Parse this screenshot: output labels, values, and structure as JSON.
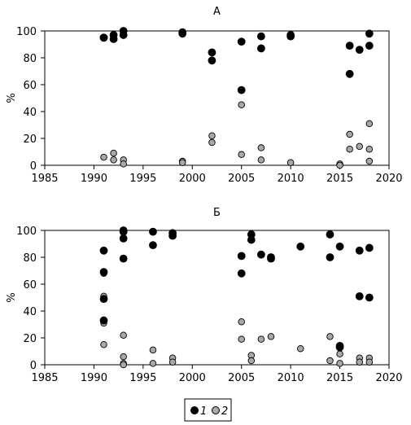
{
  "chart_data": [
    {
      "type": "scatter",
      "title": "А",
      "ylabel": "%",
      "xlabel": "",
      "xlim": [
        1985,
        2020
      ],
      "ylim": [
        0,
        100
      ],
      "xticks": [
        1985,
        1990,
        1995,
        2000,
        2005,
        2010,
        2015,
        2020
      ],
      "yticks": [
        0,
        20,
        40,
        60,
        80,
        100
      ],
      "grid": false,
      "series": [
        {
          "name": "1",
          "color": "#000000",
          "points": [
            [
              1991,
              95
            ],
            [
              1991,
              95
            ],
            [
              1992,
              97
            ],
            [
              1992,
              94
            ],
            [
              1993,
              100
            ],
            [
              1993,
              97
            ],
            [
              1999,
              99
            ],
            [
              1999,
              98
            ],
            [
              2002,
              84
            ],
            [
              2002,
              78
            ],
            [
              2005,
              92
            ],
            [
              2005,
              56
            ],
            [
              2007,
              96
            ],
            [
              2007,
              87
            ],
            [
              2010,
              97
            ],
            [
              2010,
              96
            ],
            [
              2016,
              89
            ],
            [
              2016,
              68
            ],
            [
              2017,
              86
            ],
            [
              2018,
              98
            ],
            [
              2018,
              89
            ]
          ]
        },
        {
          "name": "2",
          "color": "#a8a8a8",
          "points": [
            [
              1991,
              6
            ],
            [
              1992,
              9
            ],
            [
              1992,
              4
            ],
            [
              1993,
              4
            ],
            [
              1993,
              1
            ],
            [
              1999,
              3
            ],
            [
              1999,
              2
            ],
            [
              2002,
              22
            ],
            [
              2002,
              17
            ],
            [
              2005,
              45
            ],
            [
              2005,
              8
            ],
            [
              2007,
              13
            ],
            [
              2007,
              4
            ],
            [
              2010,
              2
            ],
            [
              2015,
              1
            ],
            [
              2015,
              0
            ],
            [
              2016,
              23
            ],
            [
              2016,
              12
            ],
            [
              2017,
              14
            ],
            [
              2018,
              31
            ],
            [
              2018,
              12
            ],
            [
              2018,
              3
            ]
          ]
        }
      ]
    },
    {
      "type": "scatter",
      "title": "Б",
      "ylabel": "%",
      "xlabel": "",
      "xlim": [
        1985,
        2020
      ],
      "ylim": [
        0,
        100
      ],
      "xticks": [
        1985,
        1990,
        1995,
        2000,
        2005,
        2010,
        2015,
        2020
      ],
      "yticks": [
        0,
        20,
        40,
        60,
        80,
        100
      ],
      "grid": false,
      "series": [
        {
          "name": "1",
          "color": "#000000",
          "points": [
            [
              1991,
              85
            ],
            [
              1991,
              69
            ],
            [
              1991,
              49
            ],
            [
              1991,
              33
            ],
            [
              1993,
              100
            ],
            [
              1993,
              99
            ],
            [
              1993,
              94
            ],
            [
              1993,
              79
            ],
            [
              1996,
              99
            ],
            [
              1996,
              89
            ],
            [
              1998,
              98
            ],
            [
              1998,
              96
            ],
            [
              2005,
              81
            ],
            [
              2005,
              68
            ],
            [
              2006,
              97
            ],
            [
              2006,
              93
            ],
            [
              2007,
              82
            ],
            [
              2008,
              80
            ],
            [
              2008,
              79
            ],
            [
              2011,
              88
            ],
            [
              2014,
              97
            ],
            [
              2014,
              80
            ],
            [
              2015,
              88
            ],
            [
              2015,
              14
            ],
            [
              2015,
              13
            ],
            [
              2017,
              85
            ],
            [
              2017,
              51
            ],
            [
              2018,
              87
            ],
            [
              2018,
              50
            ]
          ]
        },
        {
          "name": "2",
          "color": "#a8a8a8",
          "points": [
            [
              1991,
              68
            ],
            [
              1991,
              51
            ],
            [
              1991,
              31
            ],
            [
              1991,
              15
            ],
            [
              1993,
              22
            ],
            [
              1993,
              6
            ],
            [
              1993,
              1
            ],
            [
              1993,
              0
            ],
            [
              1996,
              11
            ],
            [
              1996,
              1
            ],
            [
              1998,
              5
            ],
            [
              1998,
              2
            ],
            [
              2005,
              32
            ],
            [
              2005,
              19
            ],
            [
              2006,
              7
            ],
            [
              2006,
              3
            ],
            [
              2007,
              19
            ],
            [
              2008,
              21
            ],
            [
              2011,
              12
            ],
            [
              2014,
              21
            ],
            [
              2014,
              3
            ],
            [
              2015,
              8
            ],
            [
              2015,
              1
            ],
            [
              2017,
              5
            ],
            [
              2017,
              2
            ],
            [
              2018,
              5
            ],
            [
              2018,
              2
            ]
          ]
        }
      ]
    }
  ],
  "legend": {
    "items": [
      {
        "label": "1",
        "color": "#000000"
      },
      {
        "label": "2",
        "color": "#a8a8a8"
      }
    ]
  }
}
